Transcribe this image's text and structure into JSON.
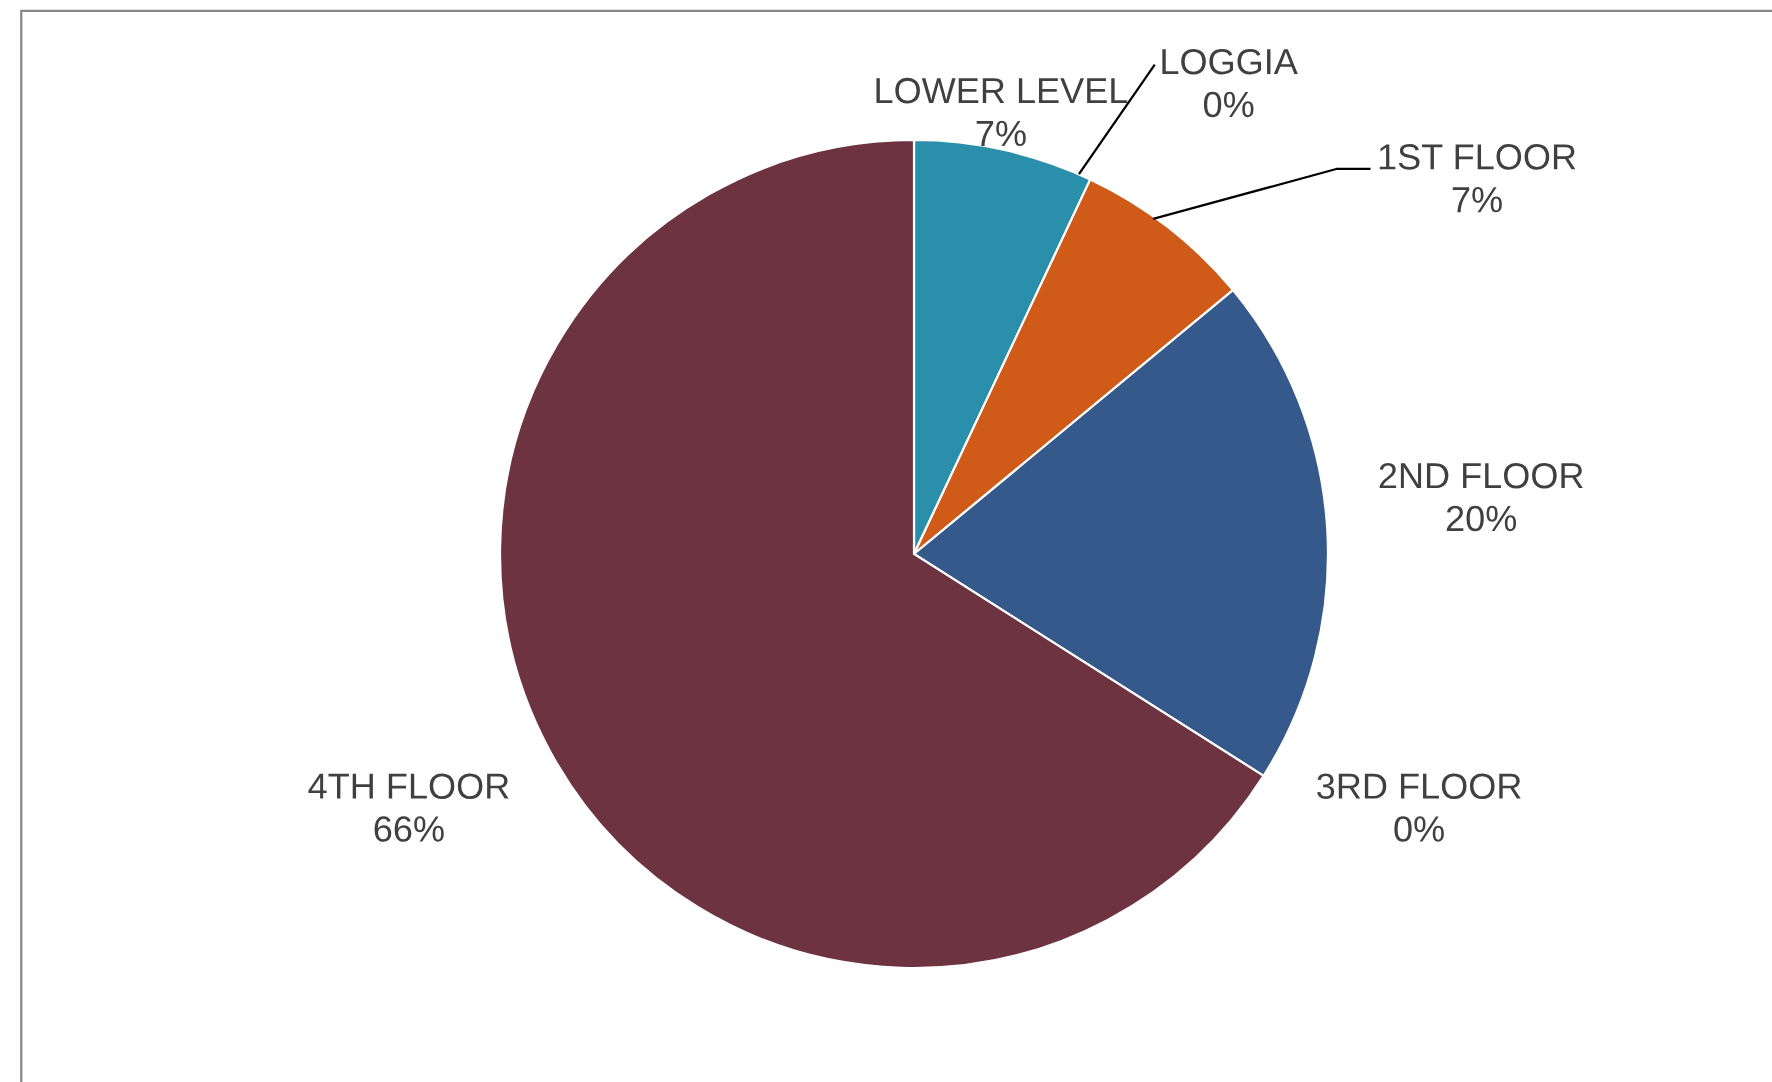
{
  "chart_data": {
    "type": "pie",
    "categories": [
      "LOWER LEVEL",
      "LOGGIA",
      "1ST FLOOR",
      "2ND FLOOR",
      "3RD FLOOR",
      "4TH FLOOR"
    ],
    "values": [
      7,
      0,
      7,
      20,
      0,
      66
    ],
    "value_labels": [
      "7%",
      "0%",
      "7%",
      "20%",
      "0%",
      "66%"
    ],
    "colors": [
      "#2a8fab",
      "#7a9a3c",
      "#d05a18",
      "#34598a",
      "#8064a2",
      "#6e3340"
    ],
    "legend": false
  }
}
